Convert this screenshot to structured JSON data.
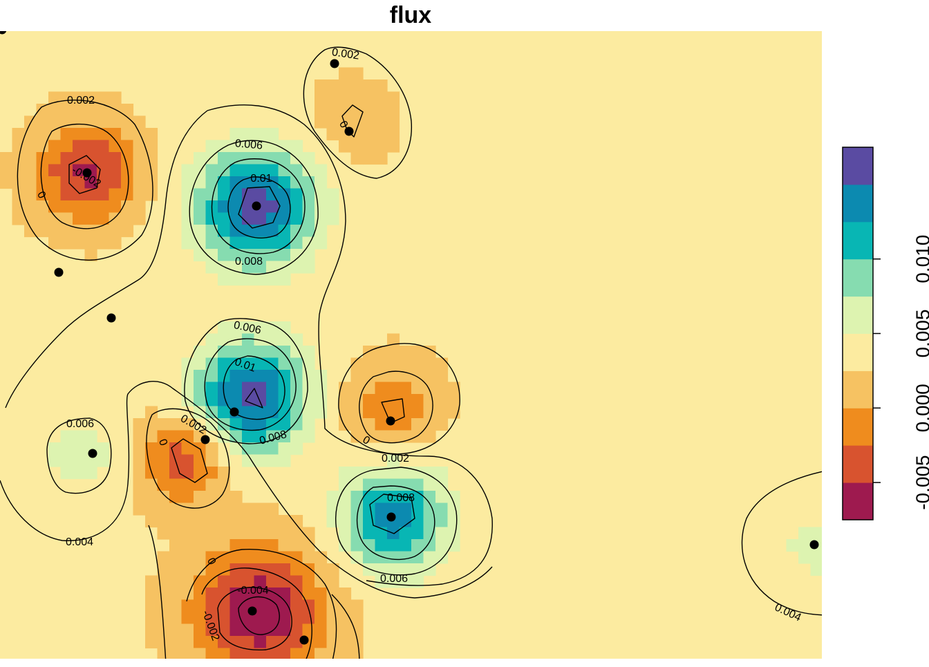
{
  "chart_data": {
    "type": "heatmap",
    "title": "flux",
    "xlabel": "",
    "ylabel": "",
    "grid": false,
    "legend": {
      "placement": "right",
      "ticks": [
        -0.005,
        0.0,
        0.005,
        0.01
      ],
      "tick_labels": [
        "-0.005",
        "0.000",
        "0.005",
        "0.010"
      ],
      "classes": [
        {
          "min": -0.0075,
          "max": -0.005,
          "color": "#9E1A4F"
        },
        {
          "min": -0.005,
          "max": -0.0025,
          "color": "#D8532F"
        },
        {
          "min": -0.0025,
          "max": 0.0,
          "color": "#EF8C1E"
        },
        {
          "min": 0.0,
          "max": 0.0025,
          "color": "#F6C262"
        },
        {
          "min": 0.0025,
          "max": 0.005,
          "color": "#FCEBA0"
        },
        {
          "min": 0.005,
          "max": 0.0075,
          "color": "#DDF3B0"
        },
        {
          "min": 0.0075,
          "max": 0.01,
          "color": "#86DCB0"
        },
        {
          "min": 0.01,
          "max": 0.0125,
          "color": "#08B6B4"
        },
        {
          "min": 0.0125,
          "max": 0.015,
          "color": "#0C8AB0"
        },
        {
          "min": 0.015,
          "max": 0.0175,
          "color": "#5A4BA2"
        }
      ]
    },
    "background_value": 0.003,
    "contour_levels": [
      -0.004,
      -0.002,
      0.0,
      0.002,
      0.004,
      0.006,
      0.008,
      0.01
    ],
    "contour_labels": [
      "0.002",
      "0.002",
      "0",
      "-0.002",
      "0",
      "0.006",
      "0.01",
      "0.008",
      "0.006",
      "0.01",
      "0.008",
      "0",
      "0.002",
      "0.006",
      "0.004",
      "0.002",
      "0",
      "0.008",
      "0.006",
      "-0.004",
      "0",
      "-0.002",
      "0.004"
    ],
    "anomalies": [
      {
        "name": "low-top-left",
        "value": -0.0055
      },
      {
        "name": "low-top-center",
        "value": 0.0012
      },
      {
        "name": "high-upper-center",
        "value": 0.016
      },
      {
        "name": "high-middle",
        "value": 0.016
      },
      {
        "name": "low-middle-right",
        "value": -0.0015
      },
      {
        "name": "high-left",
        "value": 0.0068
      },
      {
        "name": "low-left-center",
        "value": -0.0045
      },
      {
        "name": "high-lower-right",
        "value": 0.0135
      },
      {
        "name": "low-bottom",
        "value": -0.0072
      },
      {
        "name": "high-far-right",
        "value": 0.0055
      }
    ],
    "station_count": 13
  },
  "colors": {
    "background": "#FCEBA0",
    "contour_line": "#000000",
    "station_point": "#000000",
    "legend_frame": "#000000"
  }
}
